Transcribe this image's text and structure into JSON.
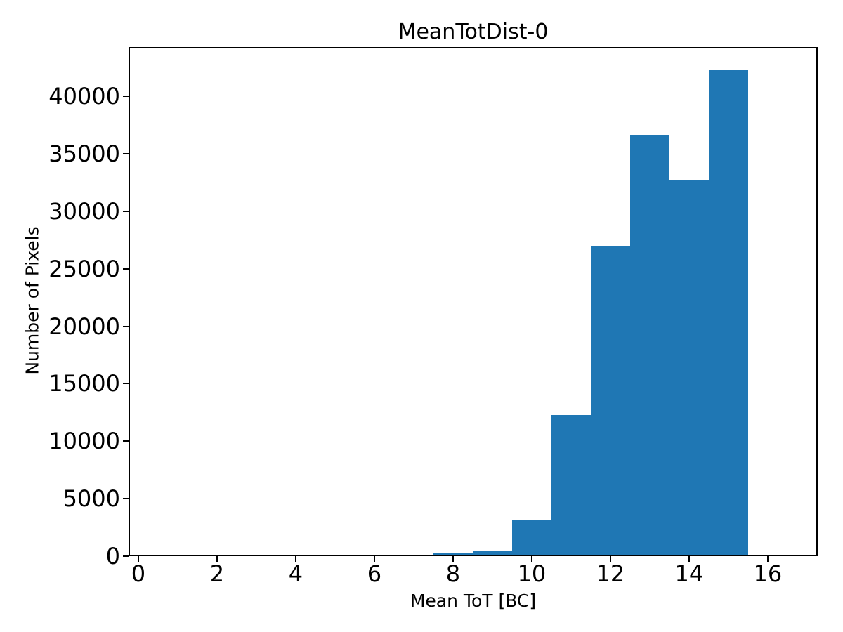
{
  "chart_data": {
    "type": "bar",
    "subtype": "histogram",
    "title": "MeanTotDist-0",
    "xlabel": "Mean ToT [BC]",
    "ylabel": "Number of Pixels",
    "bar_color": "#1f77b4",
    "axis_color": "#000000",
    "background_color": "#ffffff",
    "bin_width": 1,
    "bin_centers": [
      1,
      2,
      3,
      4,
      5,
      6,
      7,
      8,
      9,
      10,
      11,
      12,
      13,
      14,
      15,
      16
    ],
    "values": [
      0,
      0,
      0,
      0,
      0,
      0,
      0,
      120,
      300,
      3000,
      12150,
      26900,
      36500,
      32600,
      42150,
      0
    ],
    "xlim": [
      -0.25,
      17.27
    ],
    "ylim": [
      0,
      44275
    ],
    "xticks": [
      0,
      2,
      4,
      6,
      8,
      10,
      12,
      14,
      16
    ],
    "yticks": [
      0,
      5000,
      10000,
      15000,
      20000,
      25000,
      30000,
      35000,
      40000
    ],
    "grid": "off",
    "legend": "none"
  }
}
